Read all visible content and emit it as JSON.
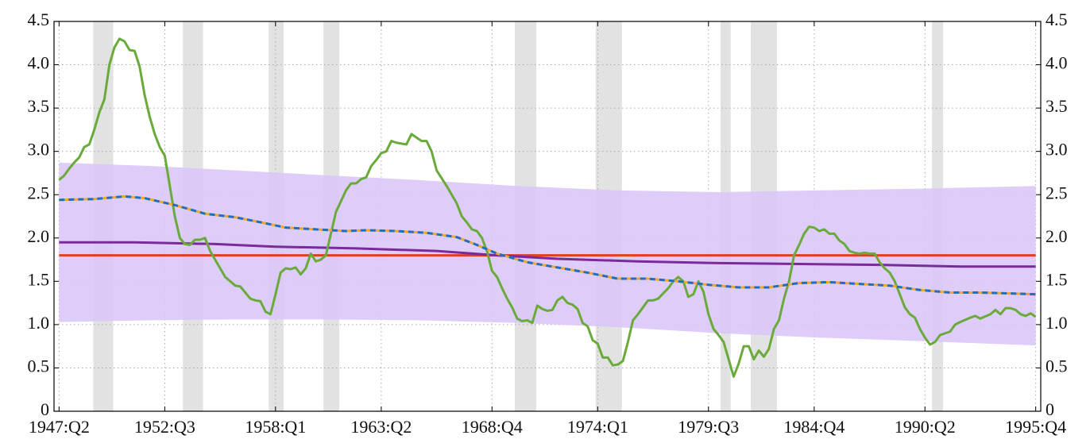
{
  "chart_data": {
    "type": "line",
    "xlim": [
      1947,
      1996
    ],
    "xticks": [
      {
        "value": 1947.25,
        "label": "1947:Q2"
      },
      {
        "value": 1952.5,
        "label": "1952:Q3"
      },
      {
        "value": 1958.0,
        "label": "1958:Q1"
      },
      {
        "value": 1963.25,
        "label": "1963:Q2"
      },
      {
        "value": 1968.75,
        "label": "1968:Q4"
      },
      {
        "value": 1974.0,
        "label": "1974:Q1"
      },
      {
        "value": 1979.5,
        "label": "1979:Q3"
      },
      {
        "value": 1984.75,
        "label": "1984:Q4"
      },
      {
        "value": 1990.25,
        "label": "1990:Q2"
      },
      {
        "value": 1995.75,
        "label": "1995:Q4"
      }
    ],
    "ylim": [
      0,
      4.5
    ],
    "yticks": [
      0,
      0.5,
      {
        "value": 1.0,
        "label": "1.0"
      },
      1.5,
      {
        "value": 2.0,
        "label": "2.0"
      },
      2.5,
      {
        "value": 3.0,
        "label": "3.0"
      },
      3.5,
      {
        "value": 4.0,
        "label": "4.0"
      },
      4.5
    ],
    "grid": true,
    "shaded_regions": [
      [
        1948.95,
        1949.94
      ],
      [
        1953.4,
        1954.4
      ],
      [
        1957.66,
        1958.4
      ],
      [
        1960.38,
        1961.17
      ],
      [
        1969.88,
        1970.95
      ],
      [
        1973.9,
        1975.2
      ],
      [
        1980.1,
        1980.6
      ],
      [
        1981.6,
        1982.9
      ],
      [
        1990.6,
        1991.15
      ]
    ],
    "shaded_color": "#e2e2e2",
    "band": {
      "color": "#dcc8f8",
      "x": [
        1947.25,
        1952,
        1956,
        1960,
        1965,
        1970,
        1975,
        1980,
        1985,
        1990,
        1995.75
      ],
      "upper": [
        2.87,
        2.83,
        2.78,
        2.73,
        2.67,
        2.6,
        2.55,
        2.53,
        2.55,
        2.57,
        2.6
      ],
      "lower": [
        1.03,
        1.05,
        1.06,
        1.06,
        1.05,
        1.02,
        0.97,
        0.9,
        0.85,
        0.81,
        0.76
      ]
    },
    "series": [
      {
        "color": "#e0401a",
        "x": [
          1947.25,
          1995.75
        ],
        "values": [
          1.8,
          1.8
        ]
      },
      {
        "color": "#7a2a9a",
        "x": [
          1947.25,
          1951,
          1955,
          1958,
          1962,
          1966,
          1969,
          1972,
          1976,
          1980,
          1984,
          1988,
          1992,
          1995.75
        ],
        "values": [
          1.95,
          1.95,
          1.93,
          1.9,
          1.88,
          1.85,
          1.8,
          1.76,
          1.73,
          1.71,
          1.7,
          1.69,
          1.67,
          1.67
        ]
      },
      {
        "color": "#6aaa3a",
        "x": [
          1947.25,
          1947.5,
          1947.75,
          1948,
          1948.25,
          1948.5,
          1948.75,
          1949,
          1949.25,
          1949.5,
          1949.75,
          1950,
          1950.25,
          1950.5,
          1950.75,
          1951,
          1951.25,
          1951.5,
          1951.75,
          1952,
          1952.25,
          1952.5,
          1952.75,
          1953,
          1953.25,
          1953.5,
          1953.75,
          1954,
          1954.25,
          1954.5,
          1954.75,
          1955,
          1955.5,
          1955.75,
          1956,
          1956.25,
          1956.75,
          1957,
          1957.25,
          1957.5,
          1957.75,
          1958,
          1958.25,
          1958.5,
          1958.75,
          1959,
          1959.25,
          1959.5,
          1959.75,
          1960,
          1960.25,
          1960.5,
          1960.75,
          1961,
          1961.5,
          1961.75,
          1962,
          1962.25,
          1962.5,
          1962.75,
          1963,
          1963.25,
          1963.5,
          1963.75,
          1964,
          1964.5,
          1964.75,
          1965,
          1965.25,
          1965.5,
          1965.75,
          1966,
          1966.5,
          1966.75,
          1967,
          1967.25,
          1967.5,
          1967.75,
          1968,
          1968.25,
          1968.5,
          1968.75,
          1969,
          1969.25,
          1969.5,
          1969.75,
          1970,
          1970.25,
          1970.5,
          1970.75,
          1971,
          1971.25,
          1971.5,
          1971.75,
          1972,
          1972.25,
          1972.5,
          1972.75,
          1973,
          1973.25,
          1973.5,
          1973.75,
          1974,
          1974.25,
          1974.5,
          1974.75,
          1975,
          1975.25,
          1975.5,
          1975.75,
          1976,
          1976.25,
          1976.5,
          1976.75,
          1977,
          1977.5,
          1977.75,
          1978,
          1978.25,
          1978.5,
          1978.75,
          1979,
          1979.25,
          1979.5,
          1979.75,
          1980,
          1980.25,
          1980.5,
          1980.75,
          1981,
          1981.25,
          1981.5,
          1981.75,
          1982,
          1982.25,
          1982.5,
          1982.75,
          1983,
          1983.25,
          1983.5,
          1983.75,
          1984,
          1984.25,
          1984.5,
          1984.75,
          1985,
          1985.25,
          1985.5,
          1985.75,
          1986,
          1986.25,
          1986.5,
          1986.75,
          1987,
          1987.25,
          1987.5,
          1987.75,
          1988,
          1988.25,
          1988.5,
          1988.75,
          1989,
          1989.25,
          1989.5,
          1989.75,
          1990,
          1990.25,
          1990.5,
          1990.75,
          1991,
          1991.5,
          1991.75,
          1992,
          1992.5,
          1992.75,
          1993,
          1993.5,
          1993.75,
          1994,
          1994.25,
          1994.5,
          1994.75,
          1995,
          1995.25,
          1995.5,
          1995.75
        ],
        "values": [
          2.67,
          2.72,
          2.8,
          2.87,
          2.93,
          3.05,
          3.08,
          3.25,
          3.45,
          3.6,
          4.0,
          4.2,
          4.3,
          4.27,
          4.17,
          4.16,
          3.98,
          3.65,
          3.4,
          3.2,
          3.05,
          2.95,
          2.6,
          2.25,
          2.0,
          1.93,
          1.92,
          1.98,
          1.98,
          2.0,
          1.85,
          1.75,
          1.55,
          1.5,
          1.45,
          1.44,
          1.3,
          1.28,
          1.27,
          1.15,
          1.12,
          1.35,
          1.6,
          1.65,
          1.64,
          1.66,
          1.58,
          1.65,
          1.82,
          1.73,
          1.75,
          1.8,
          2.05,
          2.3,
          2.55,
          2.63,
          2.63,
          2.68,
          2.7,
          2.83,
          2.9,
          2.98,
          3.0,
          3.12,
          3.1,
          3.08,
          3.2,
          3.16,
          3.12,
          3.12,
          3.0,
          2.78,
          2.6,
          2.5,
          2.4,
          2.25,
          2.18,
          2.1,
          2.08,
          2.0,
          1.85,
          1.62,
          1.55,
          1.42,
          1.3,
          1.2,
          1.07,
          1.04,
          1.05,
          1.02,
          1.22,
          1.18,
          1.16,
          1.17,
          1.28,
          1.32,
          1.25,
          1.23,
          1.18,
          1.02,
          0.98,
          0.82,
          0.78,
          0.62,
          0.62,
          0.53,
          0.54,
          0.58,
          0.8,
          1.05,
          1.12,
          1.2,
          1.28,
          1.28,
          1.3,
          1.42,
          1.5,
          1.55,
          1.5,
          1.32,
          1.35,
          1.5,
          1.38,
          1.12,
          0.95,
          0.88,
          0.8,
          0.6,
          0.4,
          0.55,
          0.75,
          0.75,
          0.6,
          0.7,
          0.63,
          0.72,
          0.95,
          1.05,
          1.3,
          1.5,
          1.8,
          1.92,
          2.05,
          2.13,
          2.12,
          2.08,
          2.1,
          2.05,
          2.05,
          1.97,
          1.93,
          1.85,
          1.83,
          1.82,
          1.83,
          1.82,
          1.82,
          1.72,
          1.65,
          1.6,
          1.5,
          1.35,
          1.2,
          1.12,
          1.08,
          0.95,
          0.85,
          0.77,
          0.8,
          0.88,
          0.92,
          1.0,
          1.03,
          1.08,
          1.1,
          1.07,
          1.12,
          1.17,
          1.12,
          1.19,
          1.19,
          1.17,
          1.12,
          1.1,
          1.13,
          1.09
        ]
      },
      {
        "color": "#f0a830",
        "x": [
          1947.25,
          1949,
          1950.5,
          1951.5,
          1953,
          1954.5,
          1956,
          1957.5,
          1958.5,
          1960,
          1961.5,
          1962.5,
          1964,
          1965.5,
          1967,
          1968,
          1969,
          1970.5,
          1972,
          1973.5,
          1975,
          1976.5,
          1978,
          1979.5,
          1981,
          1982.5,
          1984,
          1985.5,
          1987,
          1988.5,
          1990,
          1991.5,
          1993,
          1994.5,
          1995.75
        ],
        "values": [
          2.44,
          2.45,
          2.48,
          2.46,
          2.38,
          2.28,
          2.24,
          2.17,
          2.12,
          2.1,
          2.08,
          2.09,
          2.08,
          2.06,
          2.01,
          1.92,
          1.82,
          1.72,
          1.66,
          1.6,
          1.53,
          1.53,
          1.5,
          1.46,
          1.43,
          1.43,
          1.48,
          1.49,
          1.47,
          1.45,
          1.4,
          1.37,
          1.37,
          1.36,
          1.35
        ]
      },
      {
        "color": "#1f6fc0",
        "style": "dashed",
        "x": [
          1947.25,
          1949,
          1950.5,
          1951.5,
          1953,
          1954.5,
          1956,
          1957.5,
          1958.5,
          1960,
          1961.5,
          1962.5,
          1964,
          1965.5,
          1967,
          1968,
          1969,
          1970.5,
          1972,
          1973.5,
          1975,
          1976.5,
          1978,
          1979.5,
          1981,
          1982.5,
          1984,
          1985.5,
          1987,
          1988.5,
          1990,
          1991.5,
          1993,
          1994.5,
          1995.75
        ],
        "values": [
          2.44,
          2.45,
          2.48,
          2.46,
          2.38,
          2.28,
          2.24,
          2.17,
          2.12,
          2.1,
          2.08,
          2.09,
          2.08,
          2.06,
          2.01,
          1.92,
          1.82,
          1.72,
          1.66,
          1.6,
          1.53,
          1.53,
          1.5,
          1.46,
          1.43,
          1.43,
          1.48,
          1.49,
          1.47,
          1.45,
          1.4,
          1.37,
          1.37,
          1.36,
          1.35
        ]
      }
    ]
  }
}
